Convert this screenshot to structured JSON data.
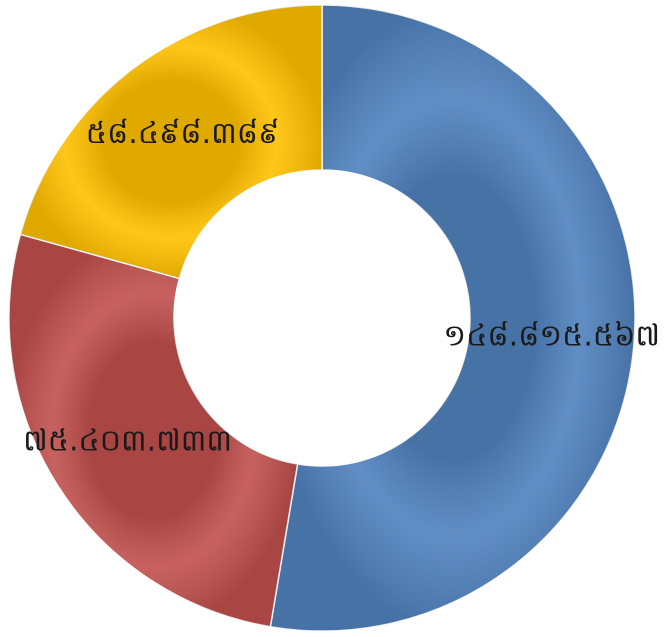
{
  "chart_data": {
    "type": "donut",
    "categories": [
      null,
      null,
      null
    ],
    "values": [
      148815567,
      75403733,
      58498389
    ],
    "value_labels": [
      "១៤៨.៨១៥.៥៦៧",
      "៧៥.៤០៣.៧៣៣",
      "៥៨.៤៩៨.៣៨៩"
    ],
    "colors": [
      "#4f81bd",
      "#c0504d",
      "#ffc000"
    ]
  }
}
